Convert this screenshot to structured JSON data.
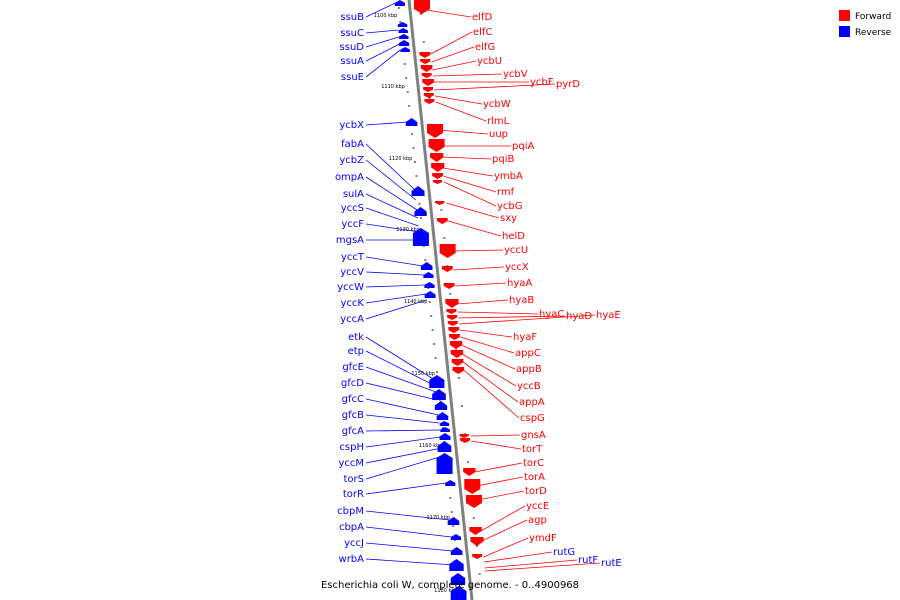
{
  "caption": "Escherichia coli W, complete genome. - 0..4900968",
  "legend": [
    {
      "label": "Forward",
      "color": "#ff0000"
    },
    {
      "label": "Reverse",
      "color": "#0000ff"
    }
  ],
  "colors": {
    "forward": "#ff0000",
    "reverse": "#0000ff",
    "backbone": "#808080"
  },
  "ticks": [
    "1100 kbp",
    "1110 kbp",
    "1120 kbp",
    "1130 kbp",
    "1140 kbp",
    "1150 kbp",
    "1160 kbp",
    "1170 kbp",
    "1180 kbp"
  ],
  "reverse_genes": [
    "ssuB",
    "ssuC",
    "ssuD",
    "ssuA",
    "ssuE",
    "ycbX",
    "fabA",
    "ycbZ",
    "ompA",
    "sulA",
    "yccS",
    "yccF",
    "mgsA",
    "yccT",
    "yccV",
    "yccW",
    "yccK",
    "yccA",
    "etk",
    "etp",
    "gfcE",
    "gfcD",
    "gfcC",
    "gfcB",
    "gfcA",
    "cspH",
    "yccM",
    "torS",
    "torR",
    "cbpM",
    "cbpA",
    "yccJ",
    "wrbA"
  ],
  "forward_genes": [
    "elfD",
    "elfC",
    "elfG",
    "ycbU",
    "ycbV",
    "ycbF",
    "pyrD",
    "ycbW",
    "rlmL",
    "uup",
    "pqiA",
    "pqiB",
    "ymbA",
    "rmf",
    "ycbG",
    "sxy",
    "helD",
    "yccU",
    "yccX",
    "hyaA",
    "hyaB",
    "hyaC",
    "hyaD",
    "hyaE",
    "hyaF",
    "appC",
    "appB",
    "yccB",
    "appA",
    "cspG",
    "gnsA",
    "torT",
    "torC",
    "torA",
    "torD",
    "yccE",
    "agp",
    "ymdF",
    "rutG",
    "rutF",
    "rutE"
  ]
}
